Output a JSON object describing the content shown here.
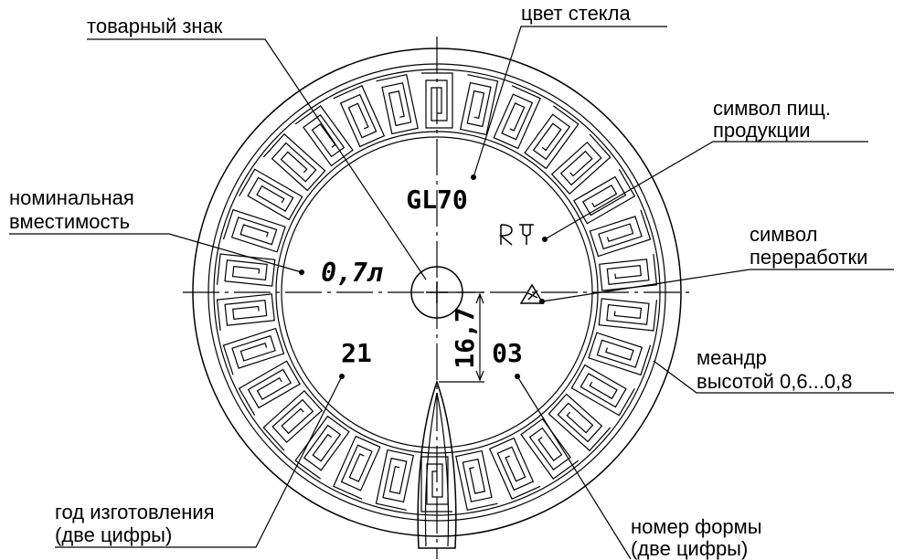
{
  "labels": {
    "trademark": "товарный знак",
    "glass_color": "цвет стекла",
    "food_symbol": [
      "символ пищ.",
      "продукции"
    ],
    "capacity": [
      "номинальная",
      "вместимость"
    ],
    "recycling": [
      "символ",
      "переработки"
    ],
    "meander": [
      "меандр",
      "высотой 0,6...0,8"
    ],
    "year": [
      "год изготовления",
      "(две цифры)"
    ],
    "mold": [
      "номер формы",
      "(две цифры)"
    ]
  },
  "markings": {
    "glass_code": "GL70",
    "capacity": "0,7л",
    "year": "21",
    "mold": "03",
    "dimension": "16,7"
  }
}
